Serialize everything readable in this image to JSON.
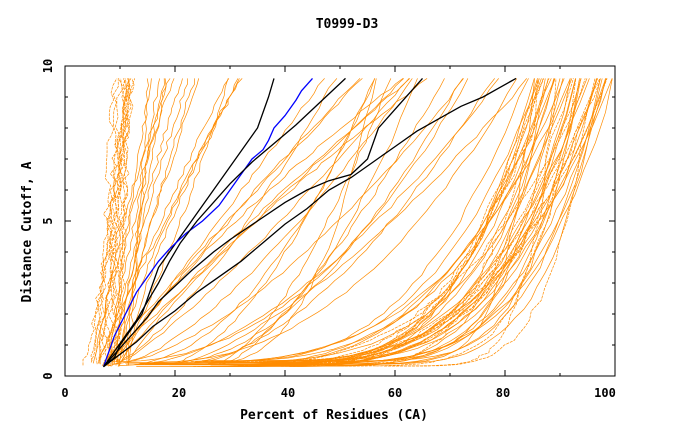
{
  "chart_data": {
    "type": "line",
    "title": "T0999-D3",
    "xlabel": "Percent of Residues (CA)",
    "ylabel": "Distance Cutoff, A",
    "xlim": [
      0,
      100
    ],
    "ylim": [
      0,
      10
    ],
    "x_ticks": [
      "0",
      "20",
      "40",
      "60",
      "80",
      "100"
    ],
    "y_ticks": [
      "0",
      "5",
      "10"
    ],
    "grid": false,
    "legend": "none",
    "colors": {
      "models": "#ff8c00",
      "reference": "#000000",
      "highlight": "#0000ff",
      "axes": "#000000"
    },
    "series": [
      {
        "color": "#000000",
        "x": [
          7,
          9,
          10,
          12,
          14,
          15,
          16,
          17,
          19,
          21,
          23,
          25,
          27,
          29,
          31,
          33,
          35,
          36,
          37,
          38
        ],
        "y": [
          0.3,
          0.6,
          1.0,
          1.5,
          2.0,
          2.5,
          3.0,
          3.5,
          4.0,
          4.5,
          5.0,
          5.5,
          6.0,
          6.5,
          7.0,
          7.5,
          8.0,
          8.5,
          9.0,
          9.6
        ]
      },
      {
        "color": "#0000ff",
        "x": [
          7,
          8,
          9,
          11,
          13,
          15,
          17,
          19,
          22,
          25,
          28,
          30,
          32,
          34,
          36,
          37,
          38,
          40,
          42,
          43,
          45
        ],
        "y": [
          0.3,
          0.8,
          1.3,
          2.0,
          2.7,
          3.2,
          3.7,
          4.1,
          4.6,
          5.0,
          5.5,
          6.0,
          6.5,
          7.0,
          7.3,
          7.6,
          8.0,
          8.4,
          8.9,
          9.2,
          9.6
        ]
      },
      {
        "color": "#000000",
        "x": [
          7,
          9,
          11,
          13,
          15,
          17,
          19,
          21,
          24,
          27,
          30,
          34,
          38,
          42,
          45,
          48,
          51
        ],
        "y": [
          0.3,
          0.8,
          1.3,
          1.8,
          2.4,
          3.0,
          3.7,
          4.3,
          5.0,
          5.6,
          6.2,
          6.9,
          7.5,
          8.1,
          8.6,
          9.1,
          9.6
        ]
      },
      {
        "color": "#000000",
        "x": [
          7,
          9,
          11,
          13,
          15,
          17,
          20,
          23,
          27,
          30,
          35,
          40,
          44,
          48,
          52,
          55,
          56,
          57,
          59,
          61,
          63,
          65
        ],
        "y": [
          0.3,
          0.7,
          1.1,
          1.5,
          1.9,
          2.4,
          2.9,
          3.4,
          4.0,
          4.4,
          5.0,
          5.6,
          6.0,
          6.3,
          6.5,
          7.0,
          7.5,
          8.0,
          8.4,
          8.8,
          9.2,
          9.6
        ]
      },
      {
        "color": "#000000",
        "x": [
          7,
          10,
          13,
          16,
          20,
          24,
          28,
          32,
          36,
          40,
          44,
          48,
          52,
          56,
          60,
          64,
          68,
          72,
          76,
          79,
          81,
          82
        ],
        "y": [
          0.3,
          0.7,
          1.1,
          1.6,
          2.1,
          2.7,
          3.2,
          3.7,
          4.3,
          4.9,
          5.4,
          6.0,
          6.4,
          6.9,
          7.4,
          7.9,
          8.3,
          8.7,
          9.0,
          9.3,
          9.5,
          9.6
        ]
      }
    ]
  }
}
